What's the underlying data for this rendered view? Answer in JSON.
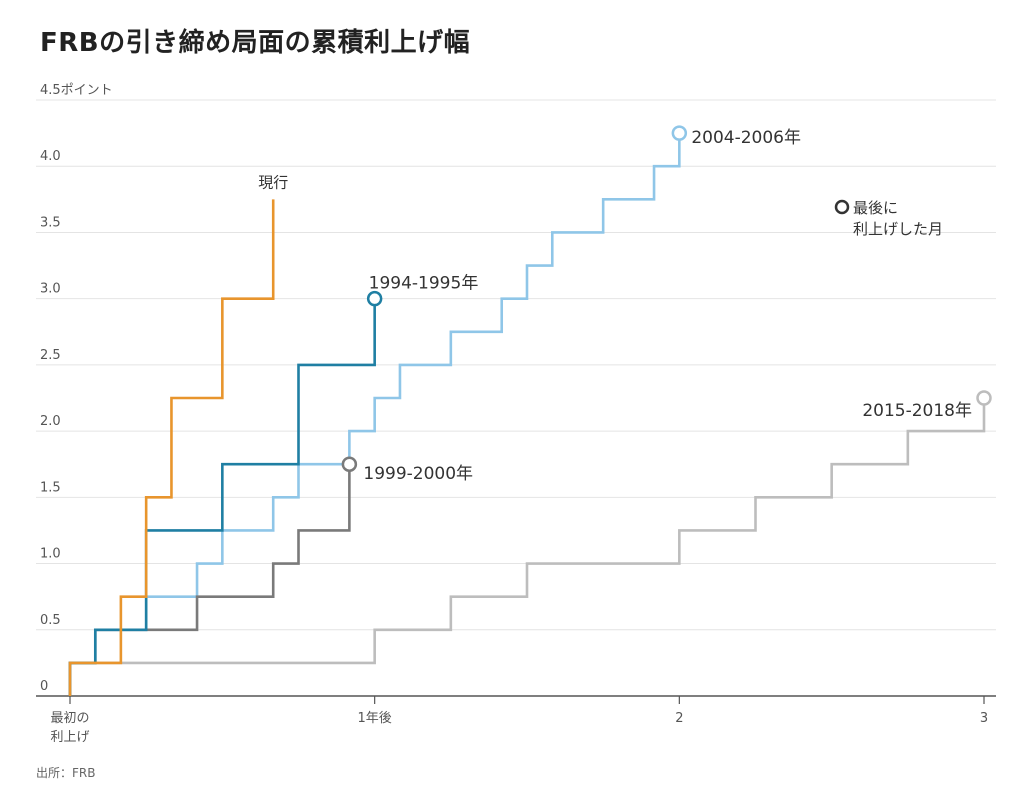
{
  "title": "FRBの引き締め局面の累積利上げ幅",
  "source": "出所：FRB",
  "chart_data": {
    "type": "line",
    "step": true,
    "title": "FRBの引き締め局面の累積利上げ幅",
    "ylabel": "ポイント",
    "ylim": [
      0,
      4.5
    ],
    "xlim": [
      0,
      3
    ],
    "y_ticks": [
      {
        "value": 0,
        "label": "0"
      },
      {
        "value": 0.5,
        "label": "0.5"
      },
      {
        "value": 1.0,
        "label": "1.0"
      },
      {
        "value": 1.5,
        "label": "1.5"
      },
      {
        "value": 2.0,
        "label": "2.0"
      },
      {
        "value": 2.5,
        "label": "2.5"
      },
      {
        "value": 3.0,
        "label": "3.0"
      },
      {
        "value": 3.5,
        "label": "3.5"
      },
      {
        "value": 4.0,
        "label": "4.0"
      },
      {
        "value": 4.5,
        "label": "4.5ポイント"
      }
    ],
    "x_ticks": [
      {
        "value": 0,
        "label": "最初の",
        "label2": "利上げ"
      },
      {
        "value": 1,
        "label": "1年後",
        "label2": ""
      },
      {
        "value": 2,
        "label": "2",
        "label2": ""
      },
      {
        "value": 3,
        "label": "3",
        "label2": ""
      }
    ],
    "grid": "horizontal",
    "legend": {
      "label_line1": "最後に",
      "label_line2": "利上げした月",
      "position": "top-right"
    },
    "series": [
      {
        "name": "2015-2018年",
        "color": "#bdbdbd",
        "end_marker": true,
        "label_anchor": "end",
        "label_pos": "left-above",
        "points": [
          [
            0,
            0.25
          ],
          [
            1.0,
            0.5
          ],
          [
            1.25,
            0.75
          ],
          [
            1.5,
            1.0
          ],
          [
            2.0,
            1.25
          ],
          [
            2.25,
            1.5
          ],
          [
            2.5,
            1.75
          ],
          [
            2.75,
            2.0
          ],
          [
            3.0,
            2.25
          ]
        ]
      },
      {
        "name": "2004-2006年",
        "color": "#8fc6e8",
        "end_marker": true,
        "label_pos": "right",
        "points": [
          [
            0,
            0.25
          ],
          [
            0.083,
            0.5
          ],
          [
            0.25,
            0.75
          ],
          [
            0.417,
            1.0
          ],
          [
            0.5,
            1.25
          ],
          [
            0.667,
            1.5
          ],
          [
            0.75,
            1.75
          ],
          [
            0.917,
            2.0
          ],
          [
            1.0,
            2.25
          ],
          [
            1.083,
            2.5
          ],
          [
            1.25,
            2.75
          ],
          [
            1.417,
            3.0
          ],
          [
            1.5,
            3.25
          ],
          [
            1.583,
            3.5
          ],
          [
            1.75,
            3.75
          ],
          [
            1.917,
            4.0
          ],
          [
            2.0,
            4.25
          ]
        ]
      },
      {
        "name": "1999-2000年",
        "color": "#7a7a7a",
        "end_marker": true,
        "label_pos": "right-below",
        "points": [
          [
            0,
            0.25
          ],
          [
            0.083,
            0.5
          ],
          [
            0.417,
            0.75
          ],
          [
            0.667,
            1.0
          ],
          [
            0.75,
            1.25
          ],
          [
            0.917,
            1.75
          ]
        ]
      },
      {
        "name": "1994-1995年",
        "color": "#1f7fa3",
        "end_marker": true,
        "label_pos": "above-right",
        "points": [
          [
            0,
            0.25
          ],
          [
            0.083,
            0.5
          ],
          [
            0.25,
            1.25
          ],
          [
            0.5,
            1.75
          ],
          [
            0.75,
            2.5
          ],
          [
            1.0,
            3.0
          ]
        ]
      },
      {
        "name": "現行",
        "color": "#e8952d",
        "end_marker": false,
        "label_pos": "above",
        "points": [
          [
            0,
            0.25
          ],
          [
            0.167,
            0.75
          ],
          [
            0.25,
            1.5
          ],
          [
            0.333,
            2.25
          ],
          [
            0.5,
            3.0
          ],
          [
            0.667,
            3.75
          ]
        ]
      }
    ]
  }
}
